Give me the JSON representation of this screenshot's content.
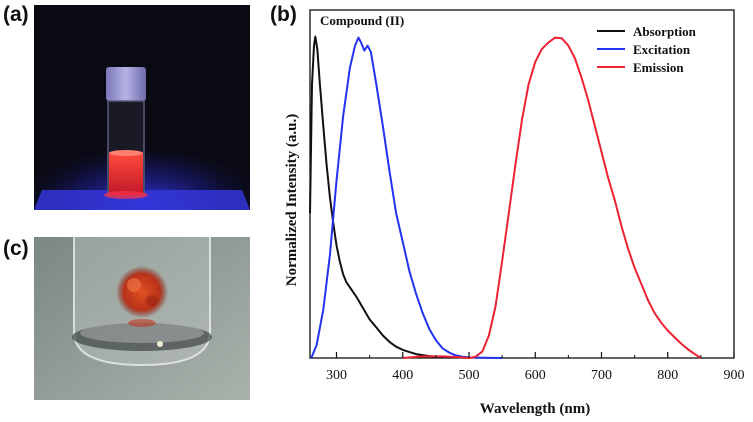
{
  "panels": {
    "a_label": "(a)",
    "b_label": "(b)",
    "c_label": "(c)"
  },
  "chart_data": {
    "type": "line",
    "title": "Compound (II)",
    "xlabel": "Wavelength (nm)",
    "ylabel": "Normalized Intensity (a.u.)",
    "xlim": [
      260,
      900
    ],
    "ylim": [
      0,
      1.0
    ],
    "xticks": [
      300,
      400,
      500,
      600,
      700,
      800,
      900
    ],
    "xtick_labels": [
      "300",
      "400",
      "500",
      "600",
      "700",
      "800",
      "900"
    ],
    "legend_position": "top-right",
    "series": [
      {
        "name": "Absorption",
        "color": "#111111",
        "points": [
          [
            260,
            0.45
          ],
          [
            263,
            0.85
          ],
          [
            266,
            0.97
          ],
          [
            268,
            0.998
          ],
          [
            271,
            0.96
          ],
          [
            275,
            0.85
          ],
          [
            280,
            0.72
          ],
          [
            285,
            0.6
          ],
          [
            290,
            0.5
          ],
          [
            295,
            0.42
          ],
          [
            300,
            0.35
          ],
          [
            305,
            0.3
          ],
          [
            310,
            0.26
          ],
          [
            315,
            0.235
          ],
          [
            320,
            0.22
          ],
          [
            330,
            0.19
          ],
          [
            340,
            0.155
          ],
          [
            350,
            0.12
          ],
          [
            360,
            0.095
          ],
          [
            370,
            0.07
          ],
          [
            380,
            0.05
          ],
          [
            390,
            0.035
          ],
          [
            400,
            0.025
          ],
          [
            420,
            0.012
          ],
          [
            440,
            0.006
          ],
          [
            460,
            0.003
          ],
          [
            480,
            0.002
          ],
          [
            500,
            0.001
          ]
        ]
      },
      {
        "name": "Excitation",
        "color": "#2233ee",
        "points": [
          [
            262,
            0.0
          ],
          [
            270,
            0.04
          ],
          [
            280,
            0.15
          ],
          [
            290,
            0.32
          ],
          [
            300,
            0.55
          ],
          [
            310,
            0.75
          ],
          [
            320,
            0.9
          ],
          [
            328,
            0.97
          ],
          [
            333,
            0.995
          ],
          [
            337,
            0.98
          ],
          [
            342,
            0.955
          ],
          [
            347,
            0.97
          ],
          [
            352,
            0.95
          ],
          [
            360,
            0.85
          ],
          [
            370,
            0.72
          ],
          [
            380,
            0.58
          ],
          [
            390,
            0.45
          ],
          [
            400,
            0.36
          ],
          [
            410,
            0.27
          ],
          [
            420,
            0.2
          ],
          [
            430,
            0.14
          ],
          [
            440,
            0.09
          ],
          [
            450,
            0.055
          ],
          [
            460,
            0.03
          ],
          [
            470,
            0.017
          ],
          [
            480,
            0.008
          ],
          [
            490,
            0.004
          ],
          [
            500,
            0.002
          ],
          [
            520,
            0.001
          ],
          [
            550,
            0.0
          ]
        ]
      },
      {
        "name": "Emission",
        "color": "#ee2233",
        "points": [
          [
            400,
            0.0
          ],
          [
            430,
            0.005
          ],
          [
            460,
            0.005
          ],
          [
            480,
            0.003
          ],
          [
            500,
            0.0
          ],
          [
            510,
            0.004
          ],
          [
            520,
            0.02
          ],
          [
            530,
            0.07
          ],
          [
            540,
            0.16
          ],
          [
            550,
            0.3
          ],
          [
            560,
            0.45
          ],
          [
            570,
            0.6
          ],
          [
            580,
            0.74
          ],
          [
            590,
            0.85
          ],
          [
            600,
            0.92
          ],
          [
            610,
            0.96
          ],
          [
            620,
            0.98
          ],
          [
            630,
            0.995
          ],
          [
            640,
            0.993
          ],
          [
            650,
            0.97
          ],
          [
            660,
            0.93
          ],
          [
            670,
            0.87
          ],
          [
            680,
            0.8
          ],
          [
            690,
            0.72
          ],
          [
            700,
            0.64
          ],
          [
            710,
            0.56
          ],
          [
            720,
            0.49
          ],
          [
            730,
            0.41
          ],
          [
            740,
            0.34
          ],
          [
            750,
            0.28
          ],
          [
            760,
            0.23
          ],
          [
            770,
            0.18
          ],
          [
            780,
            0.14
          ],
          [
            790,
            0.11
          ],
          [
            800,
            0.085
          ],
          [
            810,
            0.065
          ],
          [
            820,
            0.045
          ],
          [
            830,
            0.028
          ],
          [
            840,
            0.013
          ],
          [
            850,
            0.0
          ]
        ]
      }
    ]
  }
}
